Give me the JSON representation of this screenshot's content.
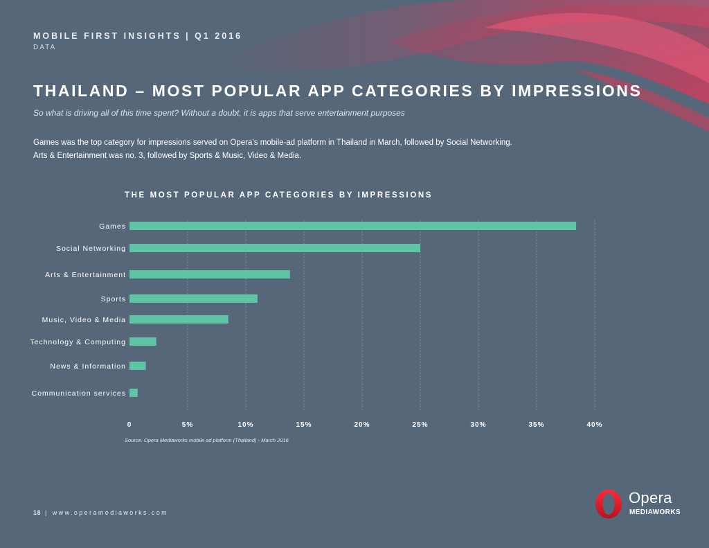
{
  "header": {
    "title": "MOBILE FIRST INSIGHTS | Q1 2016",
    "section": "DATA"
  },
  "page_title": "THAILAND – MOST POPULAR APP CATEGORIES BY IMPRESSIONS",
  "subtitle": "So what is driving all of this time spent? Without a doubt, it is apps that serve entertainment purposes",
  "body_text": "Games was the top category for impressions served on Opera’s mobile-ad platform in Thailand in March, followed by Social Networking. Arts & Entertainment was no. 3, followed by Sports & Music, Video & Media.",
  "colors": {
    "background": "#56677a",
    "bar": "#5ec6a4",
    "accent": "#e0354f"
  },
  "chart_data": {
    "type": "bar",
    "orientation": "horizontal",
    "title": "THE MOST POPULAR APP CATEGORIES BY IMPRESSIONS",
    "categories": [
      "Games",
      "Social Networking",
      "Arts & Entertainment",
      "Sports",
      "Music, Video & Media",
      "Technology & Computing",
      "News & Information",
      "Communication services"
    ],
    "values": [
      38.4,
      25.0,
      13.8,
      11.0,
      8.5,
      2.3,
      1.4,
      0.7
    ],
    "unit": "%",
    "xlim": [
      0,
      40
    ],
    "ticks": [
      0,
      5,
      10,
      15,
      20,
      25,
      30,
      35,
      40
    ],
    "tick_labels": [
      "0",
      "5%",
      "10%",
      "15%",
      "20%",
      "25%",
      "30%",
      "35%",
      "40%"
    ],
    "grid": "vertical dotted",
    "legend": "none"
  },
  "source": "Source: Opera Mediaworks mobile ad platform (Thailand) - March 2016",
  "footer": {
    "page_number": "18",
    "separator": "|",
    "url": "www.operamediaworks.com"
  },
  "logo": {
    "word": "Opera",
    "sub": "MEDIAWORKS",
    "icon": "opera-o-icon"
  }
}
